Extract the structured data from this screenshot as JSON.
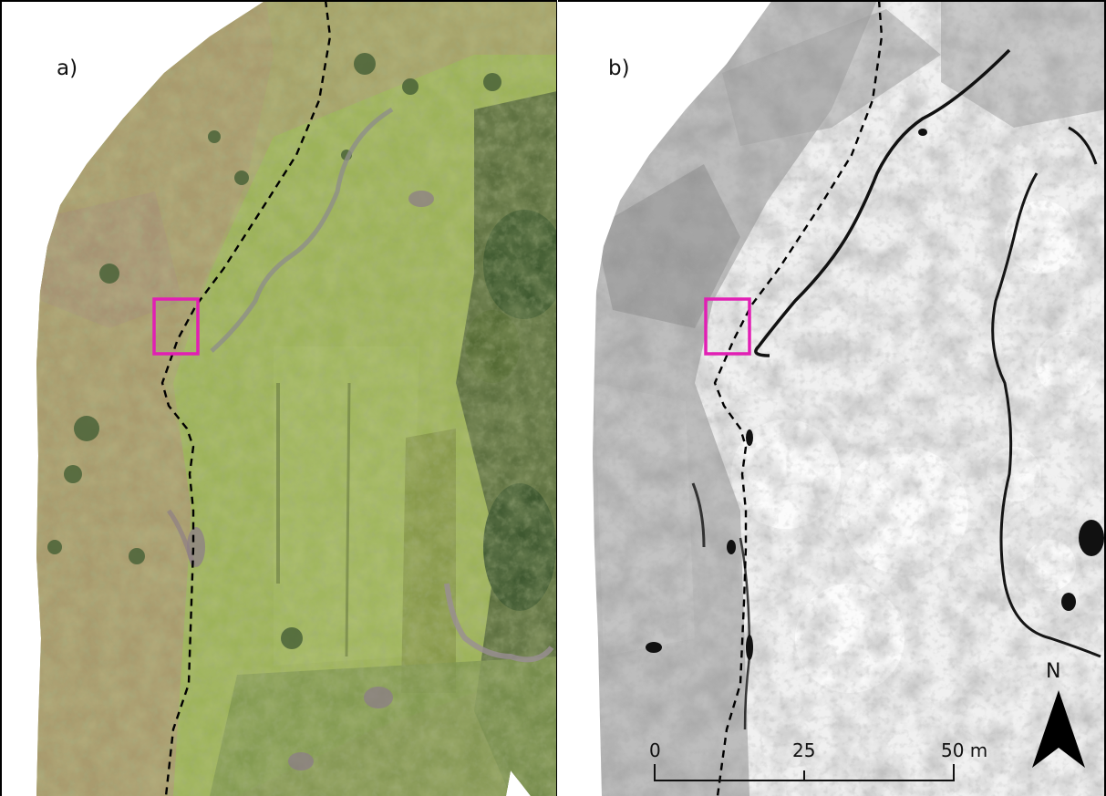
{
  "panels": [
    {
      "label": "a)",
      "imagery": "RGB orthomosaic"
    },
    {
      "label": "b)",
      "imagery": "grayscale index map"
    }
  ],
  "scale_bar": {
    "ticks": [
      "0",
      "25",
      "50 m"
    ]
  },
  "north_arrow": {
    "label": "N",
    "icon": "north-arrow-icon"
  },
  "colors": {
    "highlight_box": "#e11fb4",
    "boundary_line": "#000000",
    "vegetation_base": "#9aa862",
    "panel_b_background": "#f2f2f2"
  }
}
